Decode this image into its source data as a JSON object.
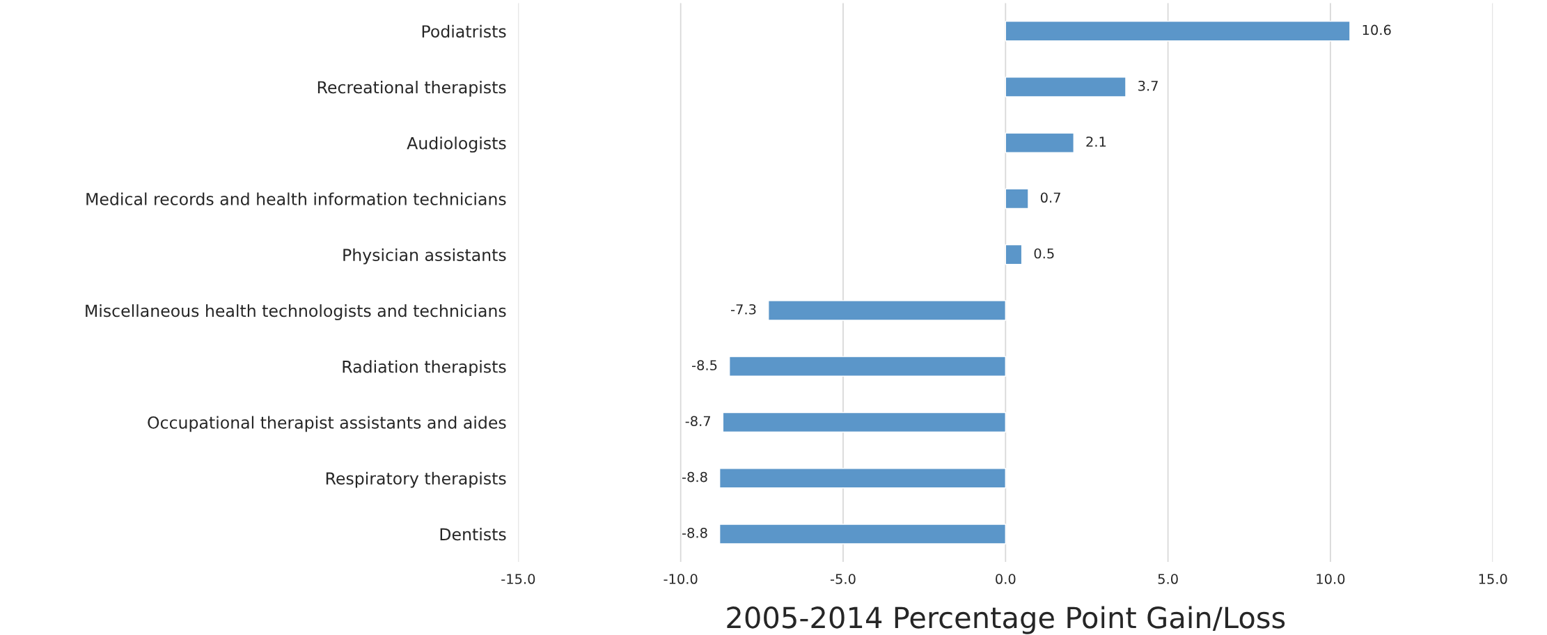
{
  "chart_data": {
    "type": "bar",
    "orientation": "horizontal",
    "xlabel": "2005-2014 Percentage Point Gain/Loss",
    "categories": [
      "Podiatrists",
      "Recreational therapists",
      "Audiologists",
      "Medical records and health information technicians",
      "Physician assistants",
      "Miscellaneous health technologists and technicians",
      "Radiation therapists",
      "Occupational therapist assistants and aides",
      "Respiratory therapists",
      "Dentists"
    ],
    "values": [
      10.6,
      3.7,
      2.1,
      0.7,
      0.5,
      -7.3,
      -8.5,
      -8.7,
      -8.8,
      -8.8
    ],
    "color": "#5b96c9",
    "xlim": [
      -15,
      15
    ],
    "xticks": [
      {
        "value": -15,
        "label": "-15.0"
      },
      {
        "value": -10,
        "label": "-10.0"
      },
      {
        "value": -5,
        "label": "-5.0"
      },
      {
        "value": 0,
        "label": "0.0"
      },
      {
        "value": 5,
        "label": "5.0"
      },
      {
        "value": 10,
        "label": "10.0"
      },
      {
        "value": 15,
        "label": "15.0"
      }
    ],
    "grid": "x",
    "data_labels": true,
    "legend": false
  }
}
